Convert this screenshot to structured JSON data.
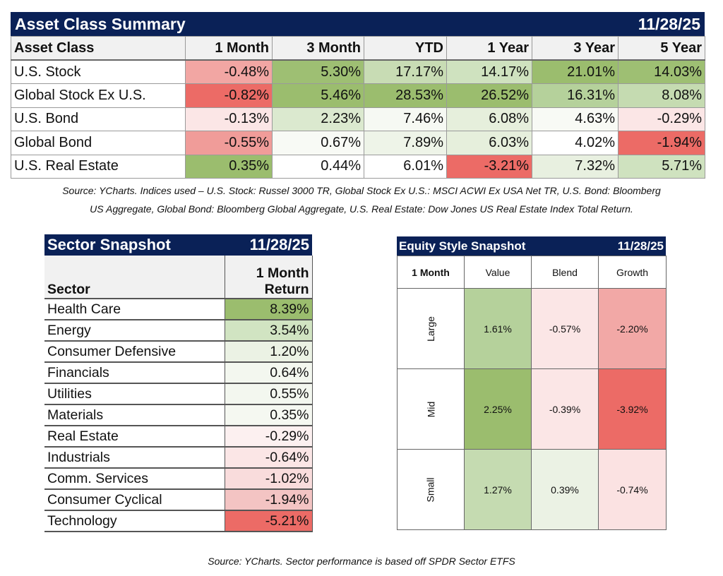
{
  "asset_summary": {
    "title": "Asset Class Summary",
    "date": "11/28/25",
    "headers": [
      "Asset Class",
      "1 Month",
      "3 Month",
      "YTD",
      "1 Year",
      "3 Year",
      "5 Year"
    ],
    "rows": [
      {
        "label": "U.S. Stock",
        "values": [
          "-0.48%",
          "5.30%",
          "17.17%",
          "14.17%",
          "21.01%",
          "14.03%"
        ],
        "colors": [
          "#f2a6a3",
          "#9ebf73",
          "#c8dcb4",
          "#cfe2bf",
          "#9bbd6e",
          "#9ebf73"
        ]
      },
      {
        "label": "Global Stock Ex U.S.",
        "values": [
          "-0.82%",
          "5.46%",
          "28.53%",
          "26.52%",
          "16.31%",
          "8.08%"
        ],
        "colors": [
          "#ec6b66",
          "#9bbd6e",
          "#9bbd6e",
          "#9bbd6e",
          "#b5d19b",
          "#c5dbb1"
        ]
      },
      {
        "label": "U.S. Bond",
        "values": [
          "-0.13%",
          "2.23%",
          "7.46%",
          "6.08%",
          "4.63%",
          "-0.29%"
        ],
        "colors": [
          "#fbe6e6",
          "#dbe9cf",
          "#f6f9f3",
          "#e6efdc",
          "#f8faf5",
          "#fbe6e6"
        ]
      },
      {
        "label": "Global Bond",
        "values": [
          "-0.55%",
          "0.67%",
          "7.89%",
          "6.03%",
          "4.02%",
          "-1.94%"
        ],
        "colors": [
          "#f09c99",
          "#f8faf5",
          "#eef4e8",
          "#e6efdc",
          "#ffffff",
          "#ec6b66"
        ]
      },
      {
        "label": "U.S. Real Estate",
        "values": [
          "0.35%",
          "0.44%",
          "6.01%",
          "-3.21%",
          "7.32%",
          "5.71%"
        ],
        "colors": [
          "#9bbd6e",
          "#ffffff",
          "#ffffff",
          "#ec6b66",
          "#e8f0e0",
          "#cfe2bf"
        ]
      }
    ],
    "source_line1": "Source: YCharts. Indices used – U.S. Stock: Russel 3000 TR, Global Stock Ex U.S.: MSCI ACWI Ex USA Net TR, U.S. Bond: Bloomberg",
    "source_line2": "US Aggregate, Global Bond: Bloomberg Global Aggregate, U.S. Real Estate: Dow Jones US Real Estate Index Total Return."
  },
  "sector_snapshot": {
    "title": "Sector Snapshot",
    "date": "11/28/25",
    "header_label": "Sector",
    "header_value_line1": "1 Month",
    "header_value_line2": "Return",
    "rows": [
      {
        "label": "Health Care",
        "value": "8.39%",
        "color": "#9bbd6e"
      },
      {
        "label": "Energy",
        "value": "3.54%",
        "color": "#d1e4c2"
      },
      {
        "label": "Consumer Defensive",
        "value": "1.20%",
        "color": "#ebf2e4"
      },
      {
        "label": "Financials",
        "value": "0.64%",
        "color": "#f3f7ef"
      },
      {
        "label": "Utilities",
        "value": "0.55%",
        "color": "#f3f7ef"
      },
      {
        "label": "Materials",
        "value": "0.35%",
        "color": "#f5f8f1"
      },
      {
        "label": "Real Estate",
        "value": "-0.29%",
        "color": "#fcf0f0"
      },
      {
        "label": "Industrials",
        "value": "-0.64%",
        "color": "#fbe6e6"
      },
      {
        "label": "Comm. Services",
        "value": "-1.02%",
        "color": "#f9dcdc"
      },
      {
        "label": "Consumer Cyclical",
        "value": "-1.94%",
        "color": "#f3c4c3"
      },
      {
        "label": "Technology",
        "value": "-5.21%",
        "color": "#ec6b66"
      }
    ]
  },
  "equity_style": {
    "title": "Equity Style Snapshot",
    "date": "11/28/25",
    "corner": "1 Month",
    "columns": [
      "Value",
      "Blend",
      "Growth"
    ],
    "rows": [
      {
        "label": "Large",
        "values": [
          "1.61%",
          "-0.57%",
          "-2.20%"
        ],
        "colors": [
          "#b5d19b",
          "#fbe6e6",
          "#f2a8a6"
        ]
      },
      {
        "label": "Mid",
        "values": [
          "2.25%",
          "-0.39%",
          "-3.92%"
        ],
        "colors": [
          "#9bbd6e",
          "#fbe6e6",
          "#ec6b66"
        ]
      },
      {
        "label": "Small",
        "values": [
          "1.27%",
          "0.39%",
          "-0.74%"
        ],
        "colors": [
          "#c5dbb1",
          "#ebf2e4",
          "#fbe2e2"
        ]
      }
    ]
  },
  "footer_source": "Source: YCharts. Sector performance is based off SPDR Sector ETFS",
  "colors": {
    "header_navy": "#0a2157",
    "positive_strong": "#9bbd6e",
    "negative_strong": "#ec6b66"
  }
}
